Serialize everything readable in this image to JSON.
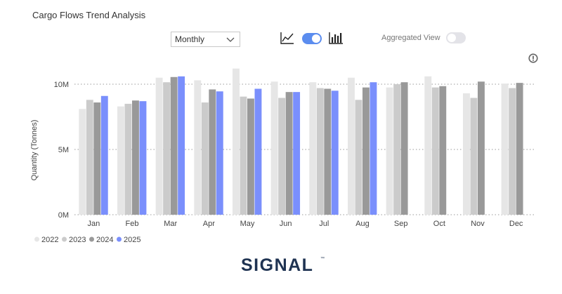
{
  "header": {
    "title": "Cargo Flows Trend Analysis",
    "period_select": "Monthly",
    "aggregated_view_label": "Aggregated View",
    "chart_mode_toggle_on": true,
    "aggregated_view_on": false,
    "icons": [
      "line-chart-icon",
      "bar-chart-icon",
      "info-icon",
      "chevron-down-icon"
    ]
  },
  "brand": {
    "logo_text": "SIGNAL",
    "trademark": "™"
  },
  "colors": {
    "2022": "#e6e6e6",
    "2023": "#cbcbcb",
    "2024": "#999999",
    "2025": "#7a8ffc",
    "accent": "#5b8def"
  },
  "chart_data": {
    "type": "bar",
    "ylabel": "Quantity (Tonnes)",
    "ylim": [
      0,
      10000000
    ],
    "yticks": [
      {
        "value": 0,
        "label": "0M"
      },
      {
        "value": 5000000,
        "label": "5M"
      },
      {
        "value": 10000000,
        "label": "10M"
      }
    ],
    "categories": [
      "Jan",
      "Feb",
      "Mar",
      "Apr",
      "May",
      "Jun",
      "Jul",
      "Aug",
      "Sep",
      "Oct",
      "Nov",
      "Dec"
    ],
    "series": [
      {
        "name": "2022",
        "values": [
          8100000,
          8300000,
          10500000,
          10300000,
          11200000,
          10200000,
          10150000,
          10500000,
          9750000,
          10600000,
          9300000,
          10050000
        ]
      },
      {
        "name": "2023",
        "values": [
          8800000,
          8500000,
          10150000,
          8600000,
          9050000,
          8950000,
          9700000,
          8800000,
          10000000,
          9750000,
          8950000,
          9700000
        ]
      },
      {
        "name": "2024",
        "values": [
          8600000,
          8750000,
          10550000,
          9600000,
          8900000,
          9400000,
          9650000,
          9750000,
          10150000,
          9850000,
          10200000,
          10100000
        ]
      },
      {
        "name": "2025",
        "values": [
          9100000,
          8700000,
          10600000,
          9450000,
          9650000,
          9400000,
          9500000,
          10150000,
          null,
          null,
          null,
          null
        ]
      }
    ],
    "grid": true,
    "legend_position": "bottom-left"
  }
}
